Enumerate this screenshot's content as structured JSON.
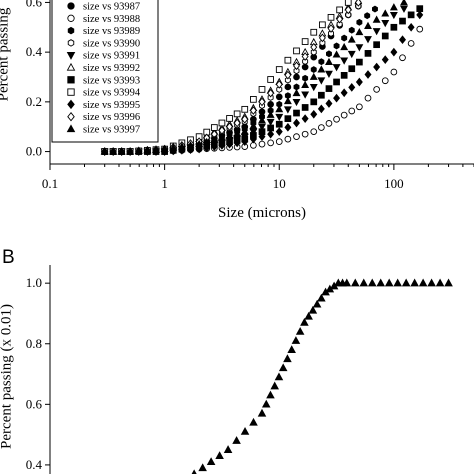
{
  "panels": {
    "b_label": "B"
  },
  "chart_data": [
    {
      "type": "scatter",
      "panel": "A",
      "xscale": "log",
      "xlim": [
        0.1,
        500
      ],
      "ylim": [
        -0.05,
        0.65
      ],
      "xlabel": "Size (microns)",
      "ylabel": "Percent passing",
      "xticks": [
        0.1,
        1,
        10,
        100
      ],
      "xtick_labels": [
        "0.1",
        "1",
        "10",
        "100"
      ],
      "yticks": [
        0.0,
        0.2,
        0.4,
        0.6
      ],
      "ytick_labels": [
        "0.0",
        "0.2",
        "0.4",
        "0.6"
      ],
      "legend_position": "top-left",
      "series": [
        {
          "name": "size vs 93987",
          "marker": "filled-circle",
          "x": [
            0.3,
            0.5,
            1,
            2,
            5,
            10,
            20,
            40,
            60
          ],
          "y": [
            0.0,
            0.0,
            0.01,
            0.03,
            0.1,
            0.22,
            0.38,
            0.55,
            0.62
          ]
        },
        {
          "name": "size vs 93988",
          "marker": "open-circle",
          "x": [
            0.3,
            0.5,
            1,
            2,
            5,
            10,
            20,
            50,
            100,
            200
          ],
          "y": [
            0.0,
            0.0,
            0.0,
            0.01,
            0.02,
            0.04,
            0.08,
            0.18,
            0.32,
            0.55
          ]
        },
        {
          "name": "size vs 93989",
          "marker": "filled-hexagon",
          "x": [
            0.3,
            0.5,
            1,
            2,
            5,
            10,
            20,
            50,
            80
          ],
          "y": [
            0.0,
            0.0,
            0.01,
            0.03,
            0.09,
            0.19,
            0.33,
            0.52,
            0.6
          ]
        },
        {
          "name": "size vs 93990",
          "marker": "open-hexagon",
          "x": [
            0.3,
            0.5,
            1,
            2,
            5,
            10,
            20,
            40,
            60
          ],
          "y": [
            0.0,
            0.0,
            0.01,
            0.04,
            0.12,
            0.25,
            0.4,
            0.55,
            0.62
          ]
        },
        {
          "name": "size vs 93991",
          "marker": "filled-triangle-down",
          "x": [
            0.3,
            0.5,
            1,
            2,
            5,
            10,
            20,
            50,
            100,
            150
          ],
          "y": [
            0.0,
            0.0,
            0.0,
            0.02,
            0.06,
            0.14,
            0.26,
            0.42,
            0.55,
            0.6
          ]
        },
        {
          "name": "size vs 93992",
          "marker": "open-triangle-up",
          "x": [
            0.3,
            0.5,
            1,
            2,
            5,
            10,
            20,
            40,
            60
          ],
          "y": [
            0.0,
            0.0,
            0.01,
            0.05,
            0.14,
            0.28,
            0.44,
            0.58,
            0.63
          ]
        },
        {
          "name": "size vs 93993",
          "marker": "filled-square",
          "x": [
            0.3,
            0.5,
            1,
            2,
            5,
            10,
            20,
            50,
            100,
            200
          ],
          "y": [
            0.0,
            0.0,
            0.0,
            0.02,
            0.05,
            0.11,
            0.2,
            0.36,
            0.5,
            0.6
          ]
        },
        {
          "name": "size vs 93994",
          "marker": "open-square",
          "x": [
            0.3,
            0.5,
            1,
            2,
            5,
            10,
            20,
            40,
            50
          ],
          "y": [
            0.0,
            0.0,
            0.01,
            0.06,
            0.17,
            0.33,
            0.48,
            0.6,
            0.63
          ]
        },
        {
          "name": "size vs 93995",
          "marker": "filled-diamond",
          "x": [
            0.3,
            0.5,
            1,
            2,
            5,
            10,
            20,
            50,
            100,
            200
          ],
          "y": [
            0.0,
            0.0,
            0.0,
            0.01,
            0.04,
            0.08,
            0.15,
            0.28,
            0.4,
            0.6
          ]
        },
        {
          "name": "size vs 93996",
          "marker": "open-diamond",
          "x": [
            0.3,
            0.5,
            1,
            2,
            5,
            10,
            20,
            40,
            60
          ],
          "y": [
            0.0,
            0.0,
            0.01,
            0.04,
            0.13,
            0.27,
            0.42,
            0.57,
            0.63
          ]
        },
        {
          "name": "size vs 93997",
          "marker": "filled-triangle-up",
          "x": [
            0.3,
            0.5,
            1,
            2,
            5,
            10,
            20,
            50,
            100,
            150
          ],
          "y": [
            0.0,
            0.0,
            0.01,
            0.03,
            0.08,
            0.17,
            0.3,
            0.48,
            0.58,
            0.62
          ]
        }
      ]
    },
    {
      "type": "scatter",
      "panel": "B",
      "xlim": [
        0,
        100
      ],
      "ylim": [
        0.37,
        1.06
      ],
      "ylabel": "Percent passing (x 0.01)",
      "yticks": [
        0.4,
        0.6,
        0.8,
        1.0
      ],
      "ytick_labels": [
        "0.4",
        "0.6",
        "0.8",
        "1.0"
      ],
      "marker": "filled-triangle-up",
      "series": [
        {
          "x": [
            34,
            36,
            38,
            40,
            42,
            44,
            46,
            48,
            50,
            51,
            52,
            53,
            54,
            55,
            56,
            57,
            58,
            59,
            60,
            61,
            62,
            63,
            64,
            65,
            66,
            67,
            68,
            69,
            70,
            72,
            74,
            76,
            78,
            80,
            82,
            84,
            86,
            88,
            90,
            92,
            94
          ],
          "y": [
            0.37,
            0.39,
            0.41,
            0.43,
            0.45,
            0.48,
            0.51,
            0.54,
            0.57,
            0.6,
            0.63,
            0.66,
            0.69,
            0.72,
            0.75,
            0.78,
            0.81,
            0.84,
            0.87,
            0.89,
            0.91,
            0.93,
            0.95,
            0.97,
            0.98,
            0.99,
            1.0,
            1.0,
            1.0,
            1.0,
            1.0,
            1.0,
            1.0,
            1.0,
            1.0,
            1.0,
            1.0,
            1.0,
            1.0,
            1.0,
            1.0
          ]
        }
      ]
    }
  ]
}
